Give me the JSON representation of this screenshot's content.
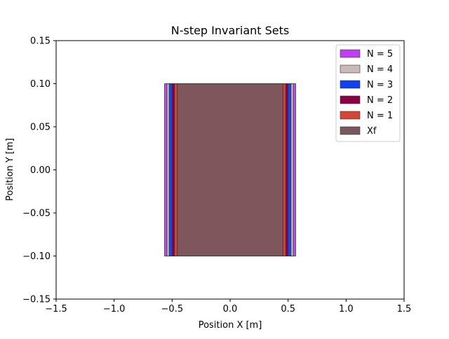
{
  "chart_data": {
    "type": "area",
    "title": "N-step Invariant Sets",
    "xlabel": "Position X [m]",
    "ylabel": "Position Y [m]",
    "xlim": [
      -1.5,
      1.5
    ],
    "ylim": [
      -0.15,
      0.15
    ],
    "xticks": [
      -1.5,
      -1.0,
      -0.5,
      0.0,
      0.5,
      1.0,
      1.5
    ],
    "xtick_labels": [
      "−1.5",
      "−1.0",
      "−0.5",
      "0.0",
      "0.5",
      "1.0",
      "1.5"
    ],
    "yticks": [
      -0.15,
      -0.1,
      -0.05,
      0.0,
      0.05,
      0.1,
      0.15
    ],
    "ytick_labels": [
      "−0.15",
      "−0.10",
      "−0.05",
      "0.00",
      "0.05",
      "0.10",
      "0.15"
    ],
    "grid": false,
    "legend_position": "top-right",
    "series": [
      {
        "name": "N = 5",
        "color": "#bf40f0",
        "x_range": [
          -0.565,
          0.565
        ],
        "y_range": [
          -0.1,
          0.1
        ]
      },
      {
        "name": "N = 4",
        "color": "#c9b9b9",
        "x_range": [
          -0.545,
          0.545
        ],
        "y_range": [
          -0.1,
          0.1
        ]
      },
      {
        "name": "N = 3",
        "color": "#1040f0",
        "x_range": [
          -0.525,
          0.525
        ],
        "y_range": [
          -0.1,
          0.1
        ]
      },
      {
        "name": "N = 2",
        "color": "#8b0045",
        "x_range": [
          -0.5,
          0.5
        ],
        "y_range": [
          -0.1,
          0.1
        ]
      },
      {
        "name": "N = 1",
        "color": "#d44538",
        "x_range": [
          -0.48,
          0.48
        ],
        "y_range": [
          -0.1,
          0.1
        ]
      },
      {
        "name": "Xf",
        "color": "#7b575f",
        "x_range": [
          -0.455,
          0.455
        ],
        "y_range": [
          -0.1,
          0.1
        ]
      }
    ]
  }
}
